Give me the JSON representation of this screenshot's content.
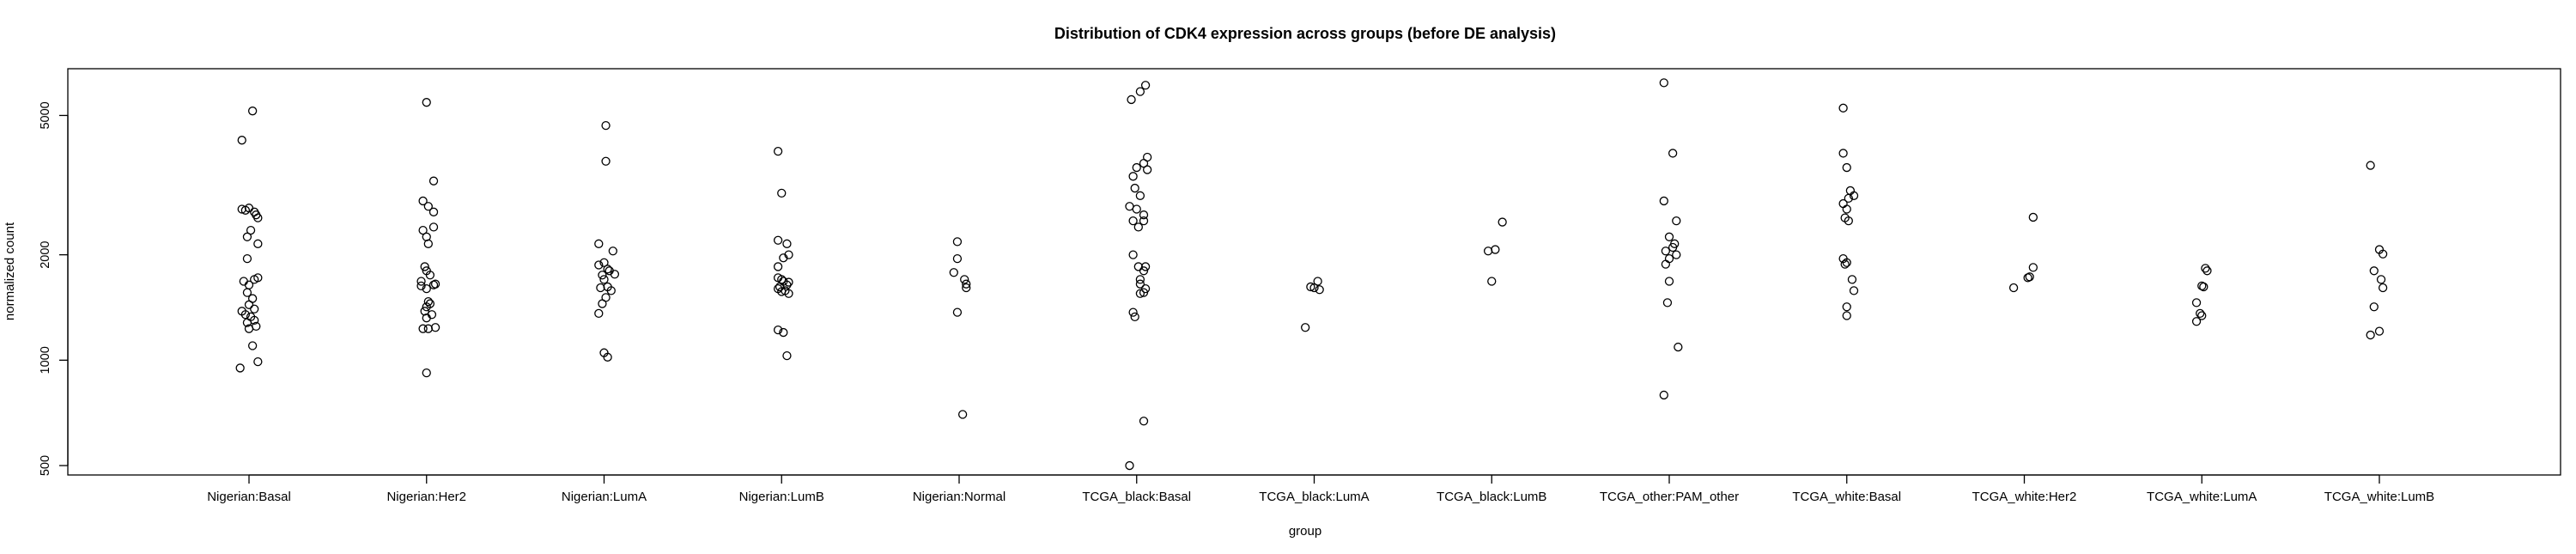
{
  "chart_data": {
    "type": "scatter",
    "title": "Distribution of CDK4 expression across groups (before DE analysis)",
    "xlabel": "group",
    "ylabel": "normalized count",
    "y_scale": "log",
    "ylim": [
      470,
      6800
    ],
    "y_ticks": [
      500,
      1000,
      2000,
      5000
    ],
    "grid": false,
    "legend": "none",
    "categories": [
      "Nigerian:Basal",
      "Nigerian:Her2",
      "Nigerian:LumA",
      "Nigerian:LumB",
      "Nigerian:Normal",
      "TCGA_black:Basal",
      "TCGA_black:LumA",
      "TCGA_black:LumB",
      "TCGA_other:PAM_other",
      "TCGA_white:Basal",
      "TCGA_white:Her2",
      "TCGA_white:LumA",
      "TCGA_white:LumB"
    ],
    "points": [
      [
        [
          -0.04,
          4250
        ],
        [
          0.02,
          5150
        ],
        [
          -0.04,
          2700
        ],
        [
          0.0,
          2720
        ],
        [
          0.03,
          2650
        ],
        [
          -0.02,
          2680
        ],
        [
          0.04,
          2600
        ],
        [
          0.05,
          2550
        ],
        [
          0.01,
          2350
        ],
        [
          -0.01,
          2250
        ],
        [
          0.05,
          2150
        ],
        [
          -0.01,
          1950
        ],
        [
          0.05,
          1720
        ],
        [
          0.03,
          1700
        ],
        [
          -0.03,
          1680
        ],
        [
          0.0,
          1640
        ],
        [
          -0.01,
          1560
        ],
        [
          0.02,
          1500
        ],
        [
          0.0,
          1440
        ],
        [
          0.03,
          1400
        ],
        [
          -0.04,
          1380
        ],
        [
          -0.02,
          1350
        ],
        [
          0.01,
          1330
        ],
        [
          0.03,
          1300
        ],
        [
          -0.01,
          1280
        ],
        [
          0.04,
          1250
        ],
        [
          0.0,
          1230
        ],
        [
          0.02,
          1100
        ],
        [
          0.05,
          990
        ],
        [
          -0.05,
          950
        ]
      ],
      [
        [
          0.0,
          5450
        ],
        [
          0.04,
          3250
        ],
        [
          -0.02,
          2850
        ],
        [
          0.01,
          2750
        ],
        [
          0.04,
          2650
        ],
        [
          -0.02,
          2350
        ],
        [
          0.04,
          2400
        ],
        [
          0.0,
          2250
        ],
        [
          0.01,
          2150
        ],
        [
          -0.01,
          1850
        ],
        [
          0.0,
          1800
        ],
        [
          0.02,
          1750
        ],
        [
          -0.03,
          1680
        ],
        [
          0.05,
          1650
        ],
        [
          -0.03,
          1630
        ],
        [
          0.04,
          1640
        ],
        [
          0.0,
          1600
        ],
        [
          0.01,
          1470
        ],
        [
          0.02,
          1450
        ],
        [
          0.0,
          1420
        ],
        [
          -0.01,
          1380
        ],
        [
          0.03,
          1350
        ],
        [
          0.0,
          1320
        ],
        [
          0.05,
          1240
        ],
        [
          0.01,
          1230
        ],
        [
          -0.02,
          1230
        ],
        [
          0.0,
          920
        ]
      ],
      [
        [
          0.01,
          4680
        ],
        [
          0.01,
          3700
        ],
        [
          -0.03,
          2150
        ],
        [
          0.05,
          2050
        ],
        [
          0.0,
          1900
        ],
        [
          -0.03,
          1870
        ],
        [
          0.02,
          1820
        ],
        [
          0.03,
          1800
        ],
        [
          -0.01,
          1750
        ],
        [
          0.06,
          1760
        ],
        [
          0.0,
          1700
        ],
        [
          0.02,
          1620
        ],
        [
          -0.02,
          1610
        ],
        [
          0.04,
          1580
        ],
        [
          0.01,
          1510
        ],
        [
          -0.01,
          1450
        ],
        [
          -0.03,
          1360
        ],
        [
          0.0,
          1050
        ],
        [
          0.02,
          1020
        ]
      ],
      [
        [
          -0.02,
          3950
        ],
        [
          0.0,
          3000
        ],
        [
          -0.02,
          2200
        ],
        [
          0.03,
          2150
        ],
        [
          0.04,
          2000
        ],
        [
          0.01,
          1960
        ],
        [
          -0.02,
          1850
        ],
        [
          -0.02,
          1720
        ],
        [
          0.0,
          1700
        ],
        [
          0.01,
          1680
        ],
        [
          0.04,
          1670
        ],
        [
          0.03,
          1640
        ],
        [
          -0.01,
          1620
        ],
        [
          -0.02,
          1600
        ],
        [
          0.02,
          1580
        ],
        [
          0.0,
          1570
        ],
        [
          0.04,
          1550
        ],
        [
          -0.02,
          1220
        ],
        [
          0.01,
          1200
        ],
        [
          0.03,
          1030
        ]
      ],
      [
        [
          -0.01,
          2180
        ],
        [
          -0.01,
          1950
        ],
        [
          -0.03,
          1780
        ],
        [
          0.03,
          1700
        ],
        [
          0.04,
          1650
        ],
        [
          0.04,
          1610
        ],
        [
          -0.01,
          1370
        ],
        [
          0.02,
          700
        ]
      ],
      [
        [
          0.05,
          6100
        ],
        [
          0.02,
          5850
        ],
        [
          -0.03,
          5550
        ],
        [
          0.06,
          3800
        ],
        [
          0.04,
          3650
        ],
        [
          0.0,
          3550
        ],
        [
          0.06,
          3500
        ],
        [
          -0.02,
          3350
        ],
        [
          -0.01,
          3100
        ],
        [
          0.02,
          2950
        ],
        [
          -0.04,
          2750
        ],
        [
          0.0,
          2700
        ],
        [
          0.04,
          2600
        ],
        [
          0.04,
          2500
        ],
        [
          -0.02,
          2500
        ],
        [
          0.01,
          2400
        ],
        [
          -0.02,
          2000
        ],
        [
          0.05,
          1850
        ],
        [
          0.01,
          1850
        ],
        [
          0.04,
          1800
        ],
        [
          0.02,
          1700
        ],
        [
          0.02,
          1650
        ],
        [
          0.05,
          1600
        ],
        [
          0.04,
          1560
        ],
        [
          0.02,
          1550
        ],
        [
          -0.02,
          1370
        ],
        [
          -0.01,
          1330
        ],
        [
          0.04,
          670
        ],
        [
          -0.04,
          500
        ]
      ],
      [
        [
          0.02,
          1680
        ],
        [
          -0.02,
          1620
        ],
        [
          0.03,
          1590
        ],
        [
          0.0,
          1610
        ],
        [
          -0.05,
          1240
        ]
      ],
      [
        [
          -0.02,
          2050
        ],
        [
          0.02,
          2070
        ],
        [
          0.06,
          2480
        ],
        [
          0.0,
          1680
        ]
      ],
      [
        [
          -0.03,
          6200
        ],
        [
          0.02,
          3900
        ],
        [
          -0.03,
          2850
        ],
        [
          0.04,
          2500
        ],
        [
          0.0,
          2250
        ],
        [
          0.03,
          2150
        ],
        [
          0.02,
          2100
        ],
        [
          -0.02,
          2050
        ],
        [
          0.04,
          2000
        ],
        [
          0.0,
          1950
        ],
        [
          -0.02,
          1880
        ],
        [
          0.0,
          1680
        ],
        [
          -0.01,
          1460
        ],
        [
          0.05,
          1090
        ],
        [
          -0.03,
          795
        ]
      ],
      [
        [
          -0.02,
          5250
        ],
        [
          -0.02,
          3900
        ],
        [
          0.0,
          3550
        ],
        [
          0.02,
          3050
        ],
        [
          0.04,
          2950
        ],
        [
          0.01,
          2900
        ],
        [
          -0.02,
          2800
        ],
        [
          0.0,
          2700
        ],
        [
          -0.01,
          2550
        ],
        [
          0.01,
          2500
        ],
        [
          -0.02,
          1950
        ],
        [
          0.0,
          1900
        ],
        [
          -0.01,
          1880
        ],
        [
          0.03,
          1700
        ],
        [
          0.04,
          1580
        ],
        [
          0.0,
          1420
        ],
        [
          0.0,
          1340
        ]
      ],
      [
        [
          0.05,
          2560
        ],
        [
          0.05,
          1840
        ],
        [
          0.03,
          1730
        ],
        [
          0.02,
          1720
        ],
        [
          -0.06,
          1610
        ]
      ],
      [
        [
          0.02,
          1830
        ],
        [
          0.03,
          1800
        ],
        [
          0.0,
          1630
        ],
        [
          0.01,
          1620
        ],
        [
          -0.03,
          1460
        ],
        [
          -0.01,
          1360
        ],
        [
          0.0,
          1340
        ],
        [
          -0.03,
          1290
        ]
      ],
      [
        [
          -0.05,
          3600
        ],
        [
          0.0,
          2070
        ],
        [
          0.02,
          2010
        ],
        [
          -0.03,
          1800
        ],
        [
          0.01,
          1700
        ],
        [
          0.02,
          1610
        ],
        [
          -0.03,
          1420
        ],
        [
          0.0,
          1210
        ],
        [
          -0.05,
          1180
        ]
      ]
    ]
  }
}
